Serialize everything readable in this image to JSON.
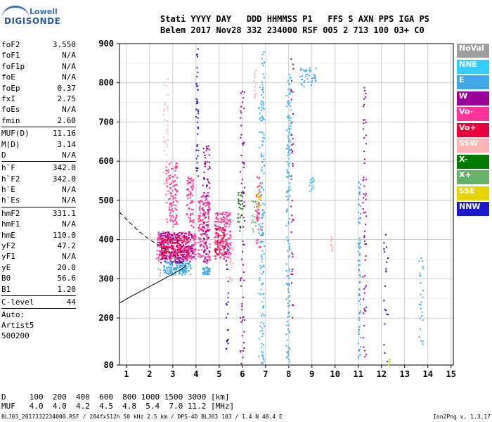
{
  "logo": {
    "line1": "Lowell",
    "line2": "DIGISONDE"
  },
  "header": {
    "line1": "Stati YYYY DAY   DDD HHMMSS P1   FFS S AXN PPS IGA PS",
    "line2": "Belem 2017 Nov28 332 234000 RSF 005 2 713 100 03+ C0"
  },
  "params_group1": [
    {
      "label": "foF2",
      "value": "3.550"
    },
    {
      "label": "foF1",
      "value": "N/A"
    },
    {
      "label": "foF1p",
      "value": "N/A"
    },
    {
      "label": "foE",
      "value": "N/A"
    },
    {
      "label": "foEp",
      "value": "0.37"
    },
    {
      "label": "fxI",
      "value": "2.75"
    },
    {
      "label": "foEs",
      "value": "N/A"
    },
    {
      "label": "fmin",
      "value": "2.60"
    }
  ],
  "params_group2": [
    {
      "label": "MUF(D)",
      "value": "11.16"
    },
    {
      "label": "M(D)",
      "value": "3.14"
    },
    {
      "label": "D",
      "value": "N/A"
    }
  ],
  "params_group3": [
    {
      "label": "h`F",
      "value": "342.0"
    },
    {
      "label": "h`F2",
      "value": "342.0"
    },
    {
      "label": "h`E",
      "value": "N/A"
    },
    {
      "label": "h`Es",
      "value": "N/A"
    }
  ],
  "params_group4": [
    {
      "label": "hmF2",
      "value": "331.1"
    },
    {
      "label": "hmF1",
      "value": "N/A"
    },
    {
      "label": "hmE",
      "value": "110.0"
    },
    {
      "label": "yF2",
      "value": "47.2"
    },
    {
      "label": "yF1",
      "value": "N/A"
    },
    {
      "label": "yE",
      "value": "20.0"
    },
    {
      "label": "B0",
      "value": "56.6"
    },
    {
      "label": "B1",
      "value": "1.20"
    }
  ],
  "params_group5": [
    {
      "label": "C-level",
      "value": "44"
    }
  ],
  "auto": {
    "line1": "Auto:",
    "line2": "Artist5",
    "line3": "500200"
  },
  "legend": [
    {
      "label": "NoVal",
      "color": "#9e9e9e"
    },
    {
      "label": "NNE",
      "color": "#33ccff"
    },
    {
      "label": "E",
      "color": "#3fa9e8"
    },
    {
      "label": "W",
      "color": "#990099"
    },
    {
      "label": "Vo-",
      "color": "#ff3399"
    },
    {
      "label": "Vo+",
      "color": "#e8003a"
    },
    {
      "label": "SSW",
      "color": "#ffb3b3"
    },
    {
      "label": "X-",
      "color": "#007a00"
    },
    {
      "label": "X+",
      "color": "#66b266"
    },
    {
      "label": "SSE",
      "color": "#e6d400"
    },
    {
      "label": "NNW",
      "color": "#1a1acc"
    }
  ],
  "bottom": {
    "d_line": "D     100  200  400  600  800 1000 1500 3000 [km]",
    "muf_line": "MUF   4.0  4.0  4.2  4.5  4.8  5.4  7.0 11.2 [MHz]"
  },
  "footer": {
    "left": "BLJ03_2017332234000.RSF / 284fx512h 50 kHz 2.5 km / DPS-4D BLJ03 103 / 1.4 N 48.4 E",
    "right": "Ion2Png v. 1.3.17"
  },
  "chart_data": {
    "type": "scatter",
    "title": "",
    "xlabel": "",
    "ylabel": "",
    "xlim": [
      0.7,
      15.1
    ],
    "ylim": [
      80,
      900
    ],
    "x_ticks": [
      1,
      2,
      3,
      4,
      5,
      6,
      7,
      8,
      9,
      10,
      11,
      12,
      13,
      14,
      15
    ],
    "y_ticks": [
      80,
      200,
      300,
      400,
      500,
      600,
      700,
      800,
      900
    ],
    "grid": true,
    "series": [
      {
        "name": "E",
        "clusters": [
          {
            "x": [
              2.6,
              3.8
            ],
            "y": [
              310,
              345
            ],
            "n": 160
          },
          {
            "x": [
              4.3,
              4.6
            ],
            "y": [
              310,
              330
            ],
            "n": 40
          },
          {
            "x": [
              6.8,
              6.95
            ],
            "y": [
              80,
              880
            ],
            "n": 120
          },
          {
            "x": [
              7.9,
              8.05
            ],
            "y": [
              80,
              830
            ],
            "n": 110
          },
          {
            "x": [
              11.0,
              11.1
            ],
            "y": [
              80,
              560
            ],
            "n": 70
          },
          {
            "x": [
              8.5,
              9.2
            ],
            "y": [
              790,
              840
            ],
            "n": 40
          },
          {
            "x": [
              13.6,
              13.8
            ],
            "y": [
              120,
              380
            ],
            "n": 25
          }
        ]
      },
      {
        "name": "Vo-",
        "clusters": [
          {
            "x": [
              2.3,
              4.0
            ],
            "y": [
              350,
              420
            ],
            "n": 320
          },
          {
            "x": [
              4.1,
              4.6
            ],
            "y": [
              340,
              520
            ],
            "n": 160
          },
          {
            "x": [
              4.8,
              5.5
            ],
            "y": [
              350,
              470
            ],
            "n": 180
          },
          {
            "x": [
              2.7,
              3.2
            ],
            "y": [
              430,
              600
            ],
            "n": 110
          },
          {
            "x": [
              3.6,
              3.9
            ],
            "y": [
              430,
              560
            ],
            "n": 70
          },
          {
            "x": [
              6.6,
              6.8
            ],
            "y": [
              380,
              560
            ],
            "n": 50
          }
        ]
      },
      {
        "name": "W",
        "clusters": [
          {
            "x": [
              2.4,
              3.9
            ],
            "y": [
              340,
              420
            ],
            "n": 180
          },
          {
            "x": [
              4.3,
              4.6
            ],
            "y": [
              330,
              640
            ],
            "n": 90
          },
          {
            "x": [
              5.9,
              6.1
            ],
            "y": [
              80,
              780
            ],
            "n": 70
          },
          {
            "x": [
              11.2,
              11.35
            ],
            "y": [
              80,
              800
            ],
            "n": 60
          },
          {
            "x": [
              8.1,
              8.2
            ],
            "y": [
              200,
              880
            ],
            "n": 40
          }
        ]
      },
      {
        "name": "Vo+",
        "clusters": [
          {
            "x": [
              2.5,
              3.7
            ],
            "y": [
              355,
              410
            ],
            "n": 120
          },
          {
            "x": [
              4.8,
              5.3
            ],
            "y": [
              360,
              430
            ],
            "n": 60
          }
        ]
      },
      {
        "name": "SSW",
        "clusters": [
          {
            "x": [
              2.6,
              2.8
            ],
            "y": [
              500,
              830
            ],
            "n": 40
          },
          {
            "x": [
              5.4,
              5.6
            ],
            "y": [
              290,
              450
            ],
            "n": 30
          },
          {
            "x": [
              6.5,
              6.6
            ],
            "y": [
              760,
              850
            ],
            "n": 15
          },
          {
            "x": [
              9.8,
              9.9
            ],
            "y": [
              360,
              410
            ],
            "n": 12
          }
        ]
      },
      {
        "name": "NNE",
        "clusters": [
          {
            "x": [
              6.7,
              6.9
            ],
            "y": [
              100,
              800
            ],
            "n": 45
          },
          {
            "x": [
              8.0,
              8.1
            ],
            "y": [
              500,
              830
            ],
            "n": 40
          },
          {
            "x": [
              8.9,
              9.1
            ],
            "y": [
              520,
              560
            ],
            "n": 15
          }
        ]
      },
      {
        "name": "NNW",
        "clusters": [
          {
            "x": [
              4.0,
              4.1
            ],
            "y": [
              560,
              890
            ],
            "n": 40
          },
          {
            "x": [
              5.3,
              5.4
            ],
            "y": [
              120,
              400
            ],
            "n": 25
          },
          {
            "x": [
              12.1,
              12.3
            ],
            "y": [
              80,
              440
            ],
            "n": 20
          }
        ]
      },
      {
        "name": "X-",
        "clusters": [
          {
            "x": [
              5.8,
              6.1
            ],
            "y": [
              420,
              520
            ],
            "n": 25
          }
        ]
      },
      {
        "name": "X+",
        "clusters": [
          {
            "x": [
              6.4,
              6.6
            ],
            "y": [
              420,
              500
            ],
            "n": 15
          }
        ]
      },
      {
        "name": "SSE",
        "clusters": [
          {
            "x": [
              6.6,
              6.8
            ],
            "y": [
              480,
              540
            ],
            "n": 15
          },
          {
            "x": [
              12.3,
              12.4
            ],
            "y": [
              80,
              95
            ],
            "n": 6
          }
        ]
      },
      {
        "name": "NoVal",
        "clusters": [
          {
            "x": [
              2.3,
              2.5
            ],
            "y": [
              300,
              420
            ],
            "n": 10
          }
        ]
      }
    ],
    "curves": [
      {
        "style": "solid",
        "x": [
          0.7,
          1.2,
          1.8,
          2.4,
          3.0,
          3.55
        ],
        "y": [
          238,
          255,
          274,
          293,
          312,
          331
        ]
      },
      {
        "style": "dashed",
        "x": [
          0.7,
          1.2,
          1.6,
          2.0,
          2.5,
          3.0,
          3.55
        ],
        "y": [
          470,
          440,
          418,
          400,
          382,
          363,
          331
        ]
      }
    ]
  }
}
